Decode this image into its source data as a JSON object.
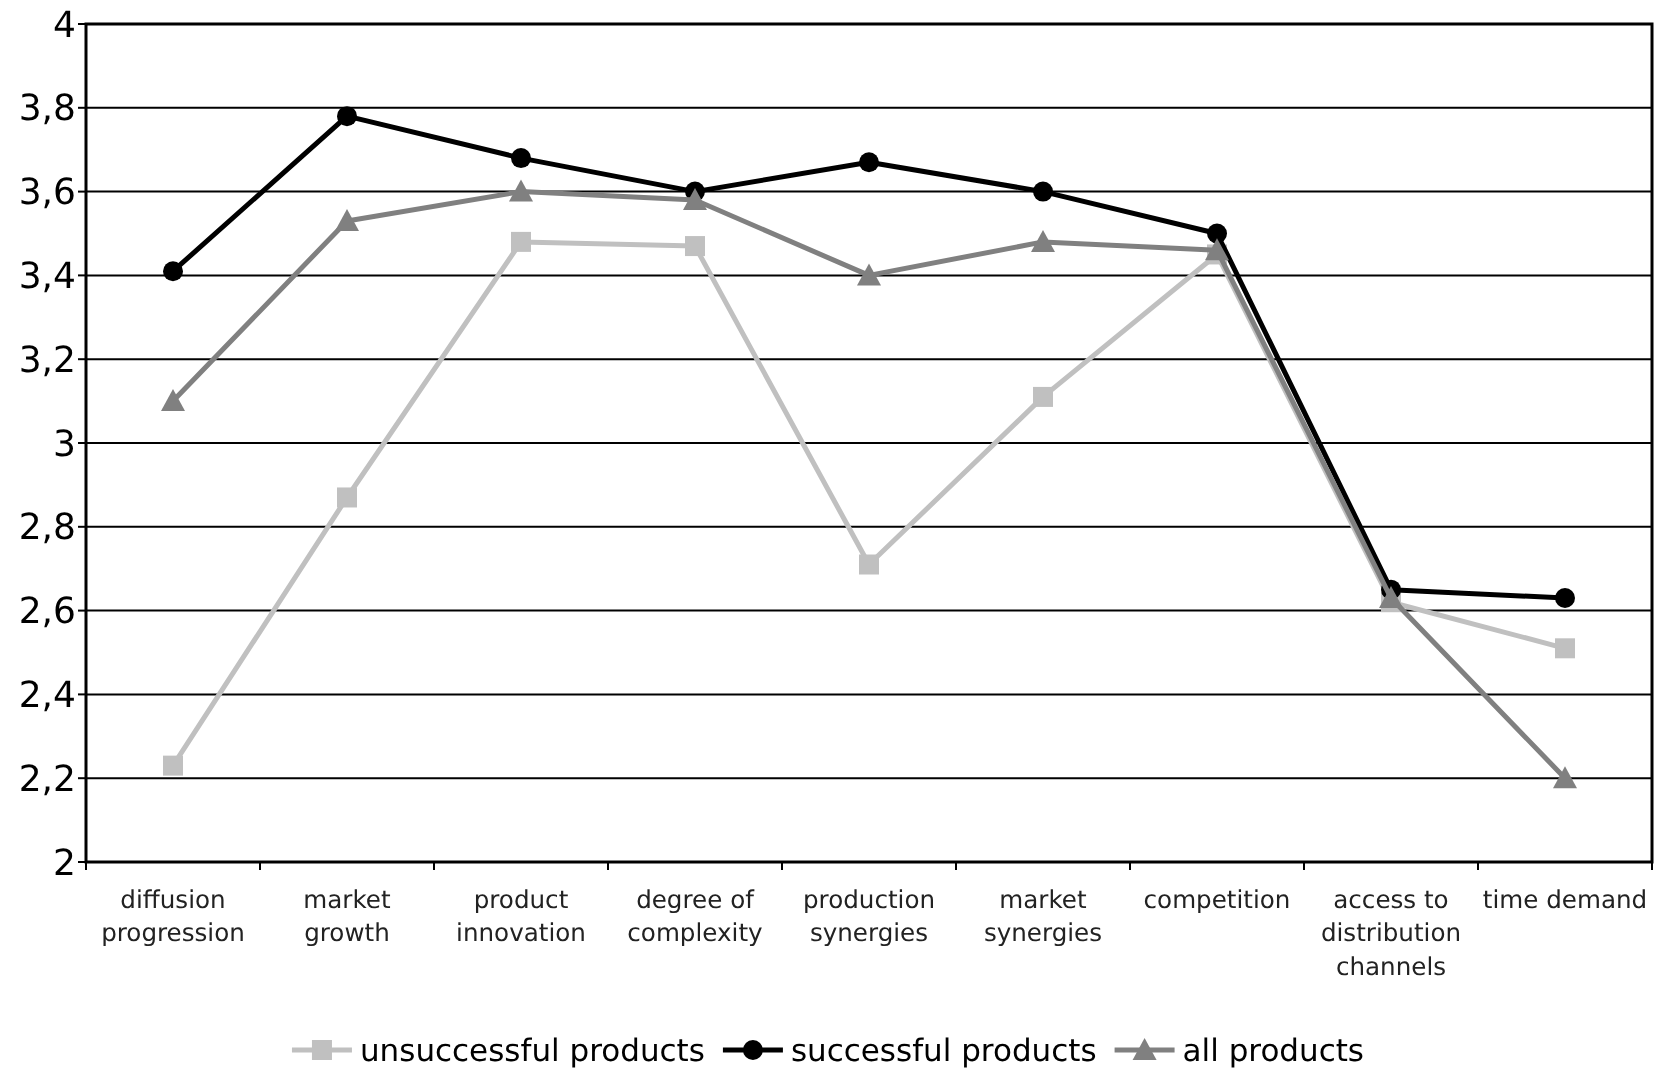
{
  "chart_data": {
    "type": "line",
    "categories": [
      "diffusion progression",
      "market growth",
      "product innovation",
      "degree of complexity",
      "production synergies",
      "market synergies",
      "competition",
      "access to distribution channels",
      "time demand"
    ],
    "series": [
      {
        "name": "unsuccessful products",
        "color": "#c0c0c0",
        "marker": "square",
        "values": [
          2.23,
          2.87,
          3.48,
          3.47,
          2.71,
          3.11,
          3.45,
          2.62,
          2.51
        ]
      },
      {
        "name": "successful products",
        "color": "#000000",
        "marker": "circle",
        "values": [
          3.41,
          3.78,
          3.68,
          3.6,
          3.67,
          3.6,
          3.5,
          2.65,
          2.63
        ]
      },
      {
        "name": "all products",
        "color": "#808080",
        "marker": "triangle",
        "values": [
          3.1,
          3.53,
          3.6,
          3.58,
          3.4,
          3.48,
          3.46,
          2.63,
          2.2
        ]
      }
    ],
    "ylim": [
      2,
      4
    ],
    "yticks": [
      2,
      {
        "value": 2.2,
        "label": "2,2"
      },
      {
        "value": 2.4,
        "label": "2,4"
      },
      {
        "value": 2.6,
        "label": "2,6"
      },
      {
        "value": 2.8,
        "label": "2,8"
      },
      3,
      {
        "value": 3.2,
        "label": "3,2"
      },
      {
        "value": 3.4,
        "label": "3,4"
      },
      {
        "value": 3.6,
        "label": "3,6"
      },
      {
        "value": 3.8,
        "label": "3,8"
      },
      4
    ],
    "grid": "y",
    "legend": "bottom"
  }
}
